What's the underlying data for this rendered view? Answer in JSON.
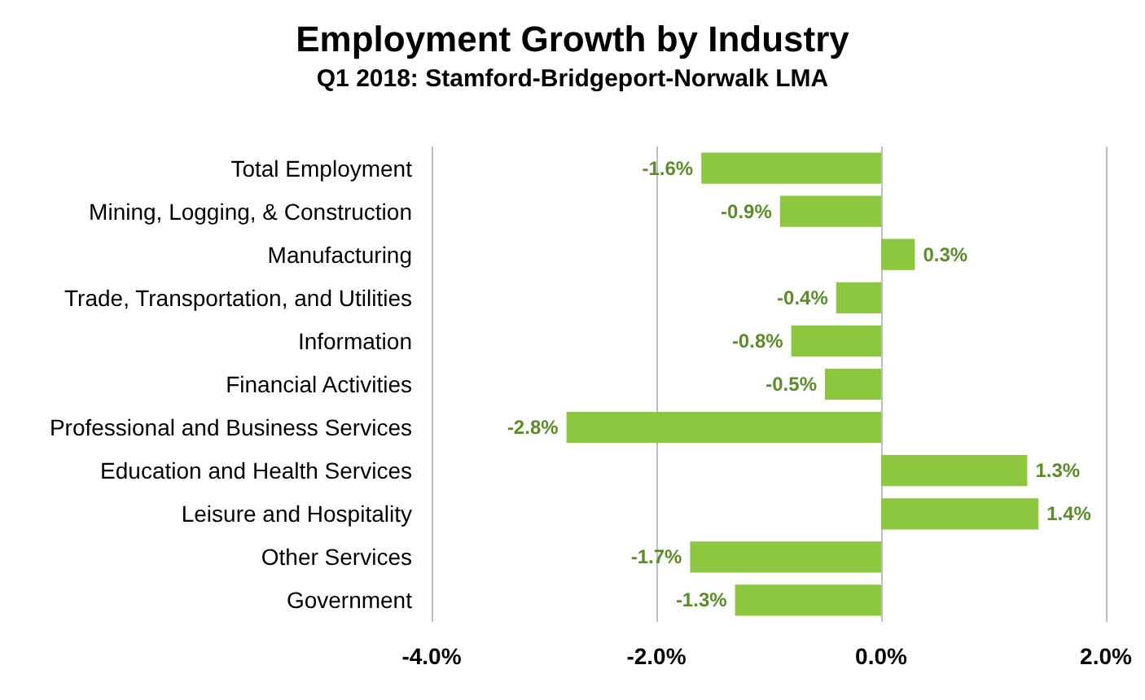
{
  "chart_data": {
    "type": "bar",
    "orientation": "horizontal",
    "title": "Employment Growth by Industry",
    "subtitle": "Q1 2018: Stamford-Bridgeport-Norwalk LMA",
    "categories": [
      "Total Employment",
      "Mining, Logging, & Construction",
      "Manufacturing",
      "Trade, Transportation, and Utilities",
      "Information",
      "Financial Activities",
      "Professional and Business Services",
      "Education and Health Services",
      "Leisure and Hospitality",
      "Other Services",
      "Government"
    ],
    "values": [
      -1.6,
      -0.9,
      0.3,
      -0.4,
      -0.8,
      -0.5,
      -2.8,
      1.3,
      1.4,
      -1.7,
      -1.3
    ],
    "value_labels": [
      "-1.6%",
      "-0.9%",
      "0.3%",
      "-0.4%",
      "-0.8%",
      "-0.5%",
      "-2.8%",
      "1.3%",
      "1.4%",
      "-1.7%",
      "-1.3%"
    ],
    "color": "#8dc63f",
    "xlim": [
      -4,
      2
    ],
    "xticks": [
      {
        "value": -4,
        "label": "-4.0%"
      },
      {
        "value": -2,
        "label": "-2.0%"
      },
      {
        "value": 0,
        "label": "0.0%"
      },
      {
        "value": 2,
        "label": "2.0%"
      }
    ],
    "grid": "x"
  }
}
